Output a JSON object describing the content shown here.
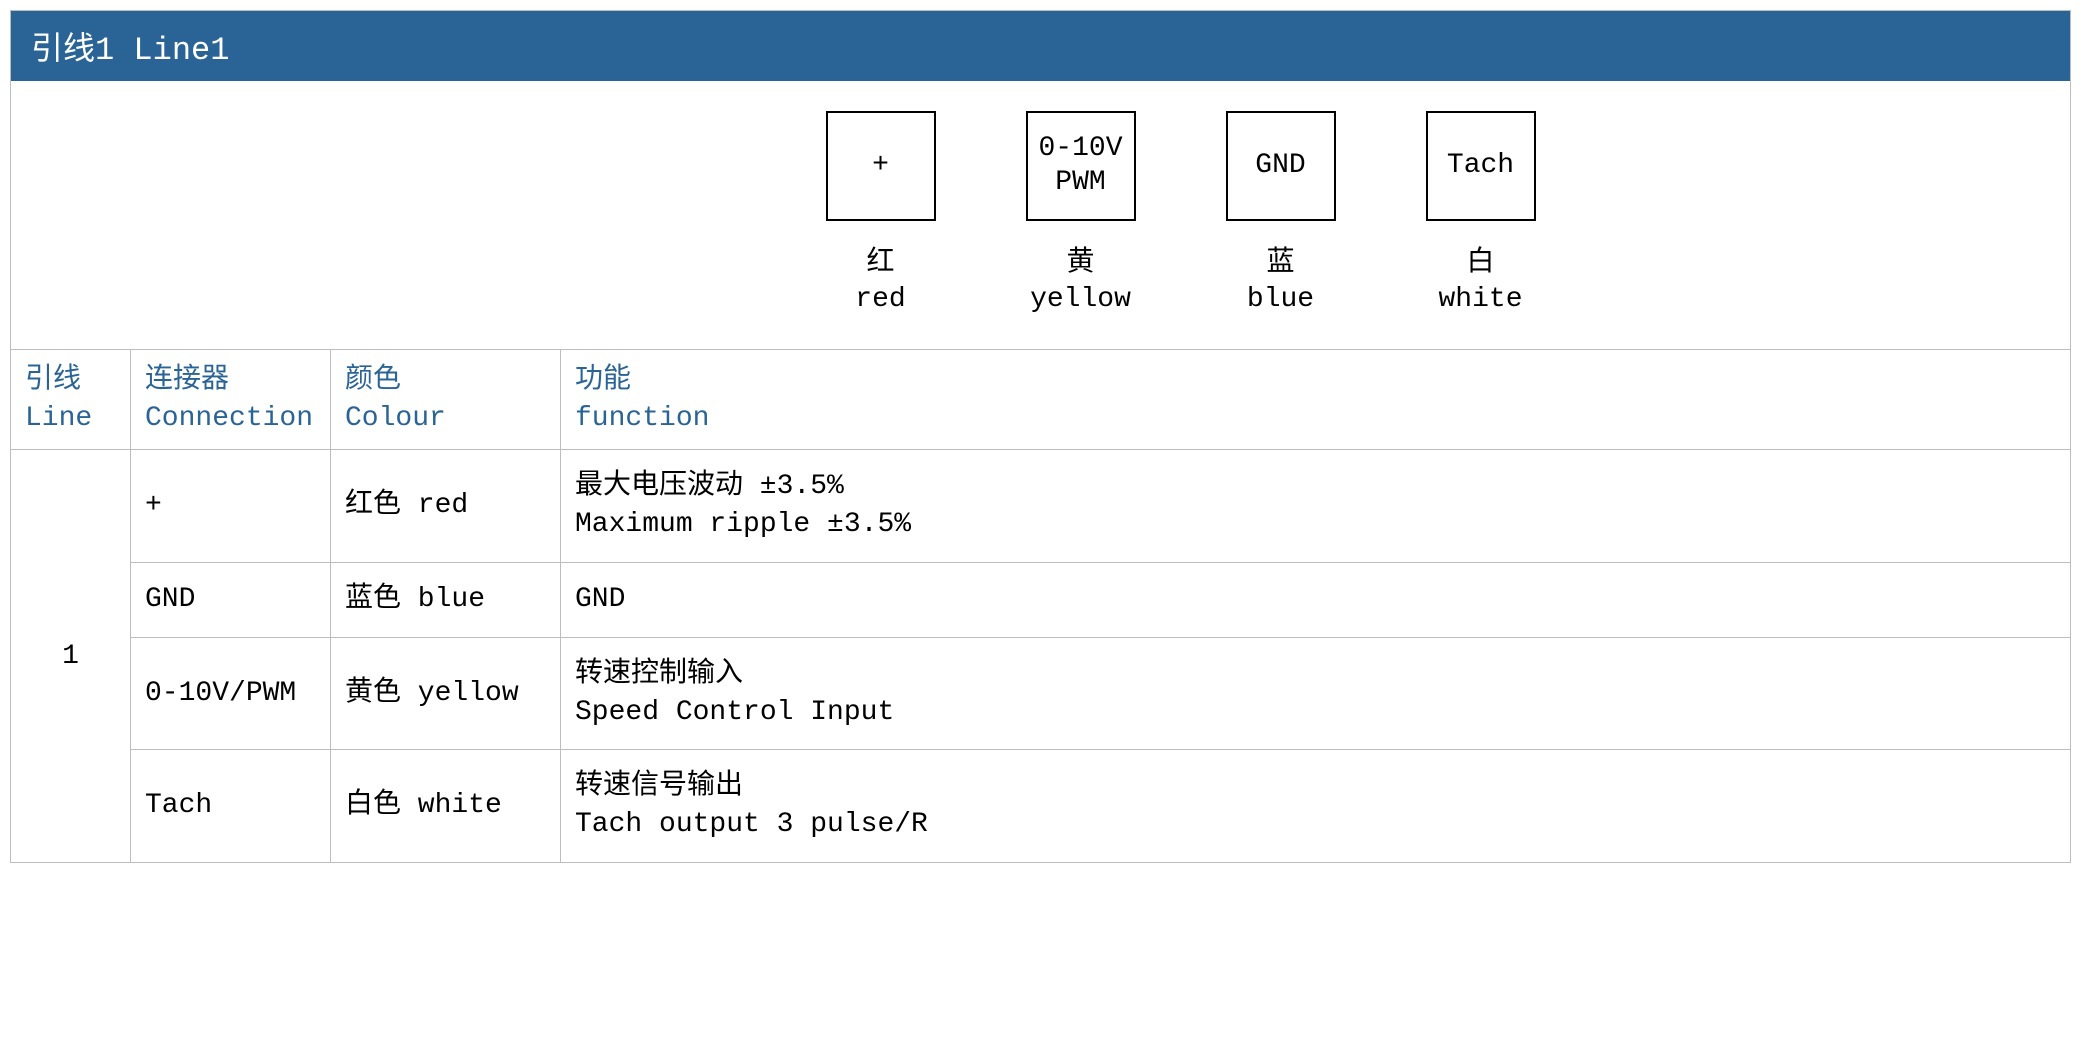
{
  "header": {
    "title": "引线1 Line1",
    "bg_color": "#2a6496",
    "text_color": "#ffffff"
  },
  "diagram": {
    "pins": [
      {
        "box_line1": "+",
        "box_line2": "",
        "label_cn": "红",
        "label_en": "red"
      },
      {
        "box_line1": "0-10V",
        "box_line2": "PWM",
        "label_cn": "黄",
        "label_en": "yellow"
      },
      {
        "box_line1": "GND",
        "box_line2": "",
        "label_cn": "蓝",
        "label_en": "blue"
      },
      {
        "box_line1": "Tach",
        "box_line2": "",
        "label_cn": "白",
        "label_en": "white"
      }
    ],
    "box_border_color": "#000000"
  },
  "table": {
    "header_color": "#2a6496",
    "columns": [
      {
        "cn": "引线",
        "en": "Line"
      },
      {
        "cn": "连接器",
        "en": "Connection"
      },
      {
        "cn": "颜色",
        "en": "Colour"
      },
      {
        "cn": "功能",
        "en": "function"
      }
    ],
    "line_value": "1",
    "rows": [
      {
        "connection": "+",
        "colour": "红色 red",
        "function_cn": "最大电压波动 ±3.5%",
        "function_en": "Maximum ripple ±3.5%"
      },
      {
        "connection": "GND",
        "colour": "蓝色 blue",
        "function_cn": "GND",
        "function_en": ""
      },
      {
        "connection": "0-10V/PWM",
        "colour": "黄色 yellow",
        "function_cn": "转速控制输入",
        "function_en": "Speed Control Input"
      },
      {
        "connection": "Tach",
        "colour": "白色 white",
        "function_cn": "转速信号输出",
        "function_en": "Tach output 3 pulse/R"
      }
    ]
  }
}
